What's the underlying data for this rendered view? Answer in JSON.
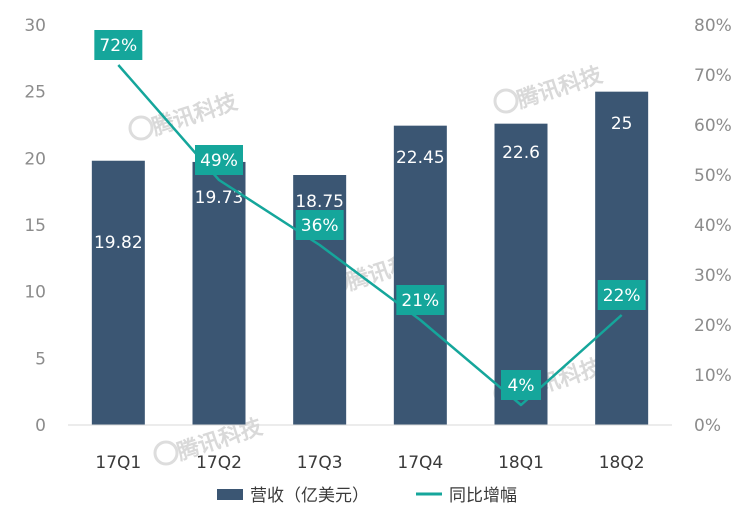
{
  "chart_data": {
    "type": "bar",
    "categories": [
      "17Q1",
      "17Q2",
      "17Q3",
      "17Q4",
      "18Q1",
      "18Q2"
    ],
    "series": [
      {
        "name": "营收（亿美元）",
        "kind": "bar",
        "axis": "left",
        "values": [
          19.82,
          19.73,
          18.75,
          22.45,
          22.6,
          25
        ],
        "labels": [
          "19.82",
          "19.73",
          "18.75",
          "22.45",
          "22.6",
          "25"
        ],
        "color": "#3b5673"
      },
      {
        "name": "同比增幅",
        "kind": "line",
        "axis": "right",
        "values": [
          72,
          49,
          36,
          21,
          4,
          22
        ],
        "labels": [
          "72%",
          "49%",
          "36%",
          "21%",
          "4%",
          "22%"
        ],
        "color": "#15a69b"
      }
    ],
    "left_axis": {
      "ylim": [
        0,
        30
      ],
      "ticks": [
        "0",
        "5",
        "10",
        "15",
        "20",
        "25",
        "30"
      ]
    },
    "right_axis": {
      "ylim": [
        0,
        80
      ],
      "ticks": [
        "0%",
        "10%",
        "20%",
        "30%",
        "40%",
        "50%",
        "60%",
        "70%",
        "80%"
      ]
    },
    "legend_position": "bottom",
    "grid": false,
    "watermark": "腾讯科技"
  }
}
